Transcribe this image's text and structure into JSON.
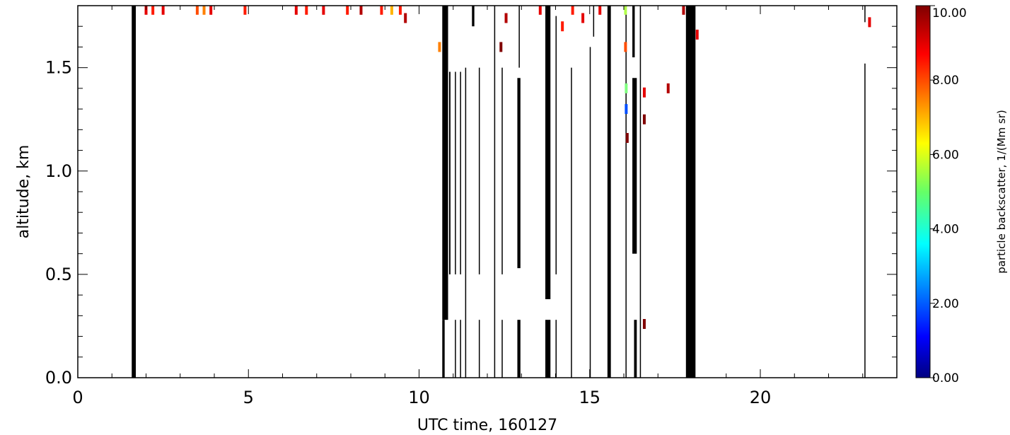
{
  "chart_data": {
    "type": "heatmap",
    "title": "",
    "xlabel": "UTC time, 160127",
    "ylabel": "altitude, km",
    "xlim": [
      0,
      24
    ],
    "ylim": [
      0,
      1.8
    ],
    "x_ticks": [
      0,
      5,
      10,
      15,
      20
    ],
    "x_tick_labels": [
      "0",
      "5",
      "10",
      "15",
      "20"
    ],
    "y_ticks": [
      0.0,
      0.5,
      1.0,
      1.5
    ],
    "y_tick_labels": [
      "0.0",
      "0.5",
      "1.0",
      "1.5"
    ],
    "colorbar": {
      "label": "particle backscatter, 1/(Mm sr)",
      "range": [
        0,
        10
      ],
      "ticks": [
        0,
        2,
        4,
        6,
        8,
        10
      ],
      "tick_labels": [
        "0.00",
        "2.00",
        "4.00",
        "6.00",
        "8.00",
        "10.00"
      ],
      "colormap": "jet"
    },
    "grid": false,
    "missing_data_color": "#000000",
    "missing_data_columns": [
      {
        "x0": 1.58,
        "x1": 1.7,
        "y0": 0,
        "y1": 1.8
      },
      {
        "x0": 10.68,
        "x1": 10.85,
        "y0": 0.28,
        "y1": 1.8
      },
      {
        "x0": 10.68,
        "x1": 10.75,
        "y0": 0,
        "y1": 0.28
      },
      {
        "x0": 10.88,
        "x1": 10.92,
        "y0": 0.5,
        "y1": 1.48
      },
      {
        "x0": 11.05,
        "x1": 11.08,
        "y0": 0.5,
        "y1": 1.48
      },
      {
        "x0": 11.05,
        "x1": 11.08,
        "y0": 0,
        "y1": 0.28
      },
      {
        "x0": 11.2,
        "x1": 11.23,
        "y0": 0.5,
        "y1": 1.48
      },
      {
        "x0": 11.2,
        "x1": 11.23,
        "y0": 0,
        "y1": 0.28
      },
      {
        "x0": 11.35,
        "x1": 11.37,
        "y0": 0,
        "y1": 1.5
      },
      {
        "x0": 11.55,
        "x1": 11.62,
        "y0": 1.7,
        "y1": 1.8
      },
      {
        "x0": 11.75,
        "x1": 11.77,
        "y0": 0.5,
        "y1": 1.5
      },
      {
        "x0": 11.75,
        "x1": 11.77,
        "y0": 0,
        "y1": 0.28
      },
      {
        "x0": 12.2,
        "x1": 12.23,
        "y0": 0,
        "y1": 1.8
      },
      {
        "x0": 12.42,
        "x1": 12.44,
        "y0": 0.5,
        "y1": 1.5
      },
      {
        "x0": 12.42,
        "x1": 12.44,
        "y0": 0,
        "y1": 0.28
      },
      {
        "x0": 12.88,
        "x1": 12.97,
        "y0": 0.53,
        "y1": 1.45
      },
      {
        "x0": 12.88,
        "x1": 12.97,
        "y0": 0,
        "y1": 0.28
      },
      {
        "x0": 12.92,
        "x1": 12.94,
        "y0": 1.5,
        "y1": 1.8
      },
      {
        "x0": 13.7,
        "x1": 13.85,
        "y0": 0.38,
        "y1": 1.8
      },
      {
        "x0": 13.7,
        "x1": 13.85,
        "y0": 0,
        "y1": 0.28
      },
      {
        "x0": 14.0,
        "x1": 14.02,
        "y0": 0.5,
        "y1": 1.75
      },
      {
        "x0": 14.0,
        "x1": 14.02,
        "y0": 0,
        "y1": 0.28
      },
      {
        "x0": 14.45,
        "x1": 14.47,
        "y0": 0,
        "y1": 1.5
      },
      {
        "x0": 15.0,
        "x1": 15.02,
        "y0": 0,
        "y1": 1.6
      },
      {
        "x0": 15.1,
        "x1": 15.12,
        "y0": 1.65,
        "y1": 1.8
      },
      {
        "x0": 15.52,
        "x1": 15.62,
        "y0": 0,
        "y1": 1.8
      },
      {
        "x0": 16.05,
        "x1": 16.07,
        "y0": 0,
        "y1": 1.8
      },
      {
        "x0": 16.25,
        "x1": 16.38,
        "y0": 0.6,
        "y1": 1.45
      },
      {
        "x0": 16.3,
        "x1": 16.38,
        "y0": 0,
        "y1": 0.28
      },
      {
        "x0": 16.25,
        "x1": 16.32,
        "y0": 1.55,
        "y1": 1.8
      },
      {
        "x0": 16.47,
        "x1": 16.49,
        "y0": 0,
        "y1": 1.8
      },
      {
        "x0": 17.82,
        "x1": 18.1,
        "y0": 0,
        "y1": 1.8
      },
      {
        "x0": 23.05,
        "x1": 23.08,
        "y0": 0,
        "y1": 1.52
      },
      {
        "x0": 23.05,
        "x1": 23.08,
        "y0": 1.72,
        "y1": 1.8
      }
    ],
    "data_points": [
      {
        "x": 2.0,
        "y": 1.78,
        "value": 9.0
      },
      {
        "x": 2.2,
        "y": 1.78,
        "value": 8.5
      },
      {
        "x": 2.5,
        "y": 1.78,
        "value": 9.0
      },
      {
        "x": 3.5,
        "y": 1.78,
        "value": 8.0
      },
      {
        "x": 3.7,
        "y": 1.78,
        "value": 7.5
      },
      {
        "x": 3.9,
        "y": 1.78,
        "value": 9.0
      },
      {
        "x": 4.9,
        "y": 1.78,
        "value": 8.5
      },
      {
        "x": 6.4,
        "y": 1.78,
        "value": 9.0
      },
      {
        "x": 6.7,
        "y": 1.78,
        "value": 8.5
      },
      {
        "x": 7.2,
        "y": 1.78,
        "value": 9.0
      },
      {
        "x": 7.9,
        "y": 1.78,
        "value": 8.5
      },
      {
        "x": 8.3,
        "y": 1.78,
        "value": 9.5
      },
      {
        "x": 8.9,
        "y": 1.78,
        "value": 8.5
      },
      {
        "x": 9.2,
        "y": 1.78,
        "value": 7.0
      },
      {
        "x": 9.45,
        "y": 1.78,
        "value": 8.5
      },
      {
        "x": 9.6,
        "y": 1.74,
        "value": 9.5
      },
      {
        "x": 10.6,
        "y": 1.6,
        "value": 7.5
      },
      {
        "x": 12.4,
        "y": 1.6,
        "value": 10.0
      },
      {
        "x": 12.55,
        "y": 1.74,
        "value": 9.5
      },
      {
        "x": 13.55,
        "y": 1.78,
        "value": 9.0
      },
      {
        "x": 14.5,
        "y": 1.78,
        "value": 8.5
      },
      {
        "x": 15.3,
        "y": 1.78,
        "value": 9.0
      },
      {
        "x": 14.2,
        "y": 1.7,
        "value": 8.5
      },
      {
        "x": 14.8,
        "y": 1.74,
        "value": 9.0
      },
      {
        "x": 16.05,
        "y": 1.78,
        "value": 5.5
      },
      {
        "x": 16.05,
        "y": 1.6,
        "value": 8.0
      },
      {
        "x": 16.07,
        "y": 1.4,
        "value": 5.0
      },
      {
        "x": 16.07,
        "y": 1.3,
        "value": 2.0
      },
      {
        "x": 16.6,
        "y": 1.38,
        "value": 9.0
      },
      {
        "x": 16.6,
        "y": 1.25,
        "value": 10.0
      },
      {
        "x": 16.1,
        "y": 1.16,
        "value": 10.0
      },
      {
        "x": 17.3,
        "y": 1.4,
        "value": 9.5
      },
      {
        "x": 17.75,
        "y": 1.78,
        "value": 9.5
      },
      {
        "x": 18.15,
        "y": 1.66,
        "value": 9.0
      },
      {
        "x": 16.6,
        "y": 0.26,
        "value": 10.0
      },
      {
        "x": 23.2,
        "y": 1.72,
        "value": 9.0
      }
    ]
  }
}
